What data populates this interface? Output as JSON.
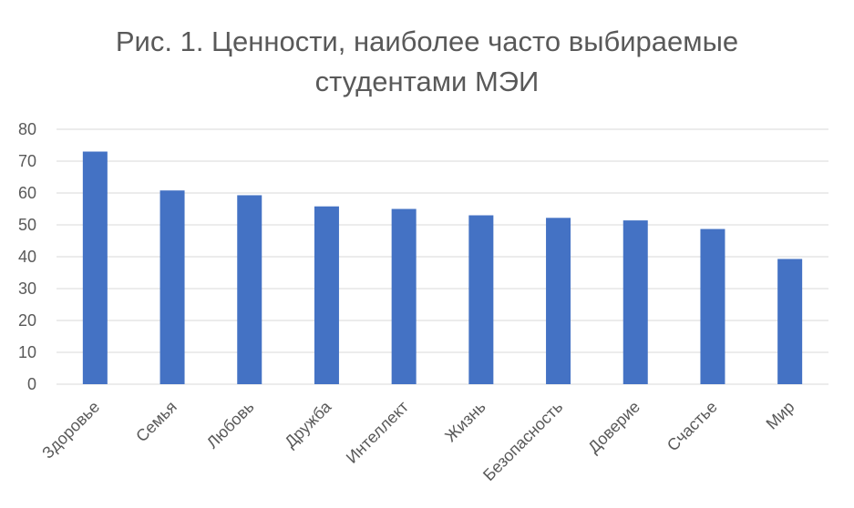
{
  "chart_data": {
    "type": "bar",
    "title_line1": "Рис. 1. Ценности, наиболее часто выбираемые",
    "title_line2": "студентами МЭИ",
    "categories": [
      "Здоровье",
      "Семья",
      "Любовь",
      "Дружба",
      "Интеллект",
      "Жизнь",
      "Безопасность",
      "Доверие",
      "Счастье",
      "Мир"
    ],
    "series": [
      {
        "values": [
          73,
          60.8,
          59.3,
          55.8,
          55,
          53,
          52.2,
          51.4,
          48.7,
          39.3
        ]
      }
    ],
    "ylim": [
      0,
      80
    ],
    "yticks": [
      0,
      10,
      20,
      30,
      40,
      50,
      60,
      70,
      80
    ],
    "grid": true,
    "bar_color": "#4472C4",
    "grid_color": "#D9D9D9"
  }
}
